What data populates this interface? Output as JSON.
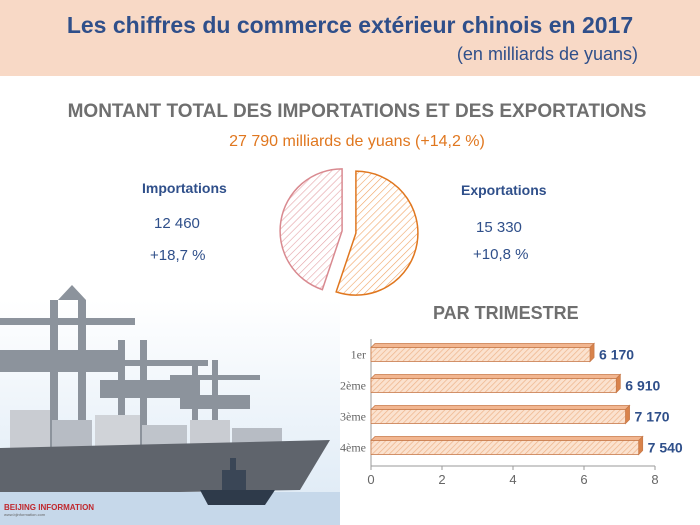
{
  "header": {
    "title": "Les chiffres du commerce extérieur chinois en 2017",
    "unit": "(en milliards de yuans)"
  },
  "total_section": {
    "title": "MONTANT TOTAL DES IMPORTATIONS ET DES EXPORTATIONS",
    "total": "27 790 milliards de yuans (+14,2 %)"
  },
  "imports": {
    "label": "Importations",
    "value": "12 460",
    "growth": "+18,7 %"
  },
  "exports": {
    "label": "Exportations",
    "value": "15 330",
    "growth": "+10,8 %"
  },
  "quarter_section": {
    "title": "PAR TRIMESTRE"
  },
  "logo": {
    "text": "BEIJING INFORMATION",
    "url": "www.bjinformation.com"
  },
  "colors": {
    "orange": "#e0771f",
    "pink": "#d98a90",
    "navy": "#2f4f8a",
    "bar_fill": "#f6c7a6",
    "header_bg": "#f8d9c6"
  },
  "chart_data": [
    {
      "type": "pie",
      "labels": [
        "Importations",
        "Exportations"
      ],
      "values": [
        12460,
        15330
      ],
      "colors": [
        "#d98a90",
        "#e0771f"
      ]
    },
    {
      "type": "bar",
      "orientation": "horizontal",
      "categories": [
        "1er",
        "2ème",
        "3ème",
        "4ème"
      ],
      "values": [
        6.17,
        6.91,
        7.17,
        7.54
      ],
      "data_labels": [
        "6 170",
        "6 910",
        "7 170",
        "7 540"
      ],
      "xlim": [
        0,
        8
      ],
      "x_ticks": [
        "0",
        "2",
        "4",
        "6",
        "8"
      ]
    }
  ]
}
